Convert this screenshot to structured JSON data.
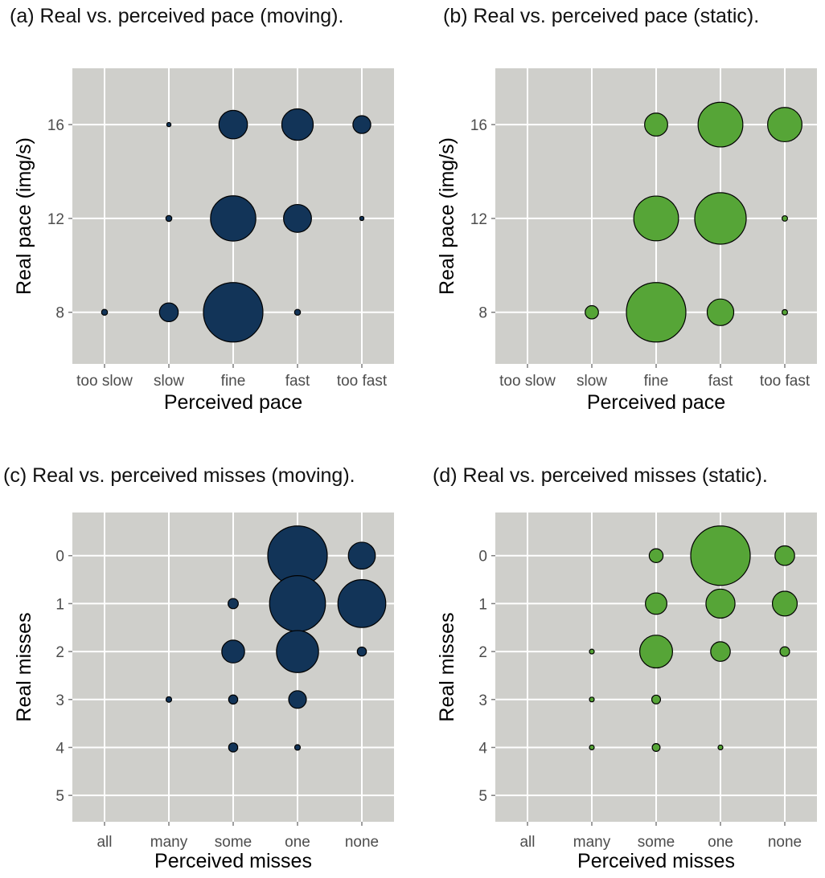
{
  "colors": {
    "moving": "#123458",
    "static": "#56a537",
    "plot_bg": "#cfcfcb",
    "grid": "#ffffff",
    "stroke": "#000000"
  },
  "captions": {
    "a": "(a) Real vs. perceived pace (moving).",
    "b": "(b) Real vs. perceived pace (static).",
    "c": "(c) Real vs. perceived misses (moving).",
    "d": "(d) Real vs. perceived misses (static)."
  },
  "chart_data": [
    {
      "id": "a",
      "type": "scatter",
      "subtype": "bubble",
      "title": "(a) Real vs. perceived pace (moving).",
      "xlabel": "Perceived pace",
      "ylabel": "Real pace (img/s)",
      "x_categories": [
        "too slow",
        "slow",
        "fine",
        "fast",
        "too fast"
      ],
      "y_ticks": [
        "8",
        "12",
        "16"
      ],
      "ylim": [
        5.8,
        18.4
      ],
      "y_reversed": false,
      "color_key": "moving",
      "grid": true,
      "points": [
        {
          "x": "too slow",
          "y": 8,
          "size": 1
        },
        {
          "x": "slow",
          "y": 8,
          "size": 10
        },
        {
          "x": "fine",
          "y": 8,
          "size": 100
        },
        {
          "x": "fast",
          "y": 8,
          "size": 1
        },
        {
          "x": "slow",
          "y": 12,
          "size": 1
        },
        {
          "x": "fine",
          "y": 12,
          "size": 58
        },
        {
          "x": "fast",
          "y": 12,
          "size": 22
        },
        {
          "x": "too fast",
          "y": 12,
          "size": 0.5
        },
        {
          "x": "slow",
          "y": 16,
          "size": 0.5
        },
        {
          "x": "fine",
          "y": 16,
          "size": 23
        },
        {
          "x": "fast",
          "y": 16,
          "size": 28
        },
        {
          "x": "too fast",
          "y": 16,
          "size": 9
        }
      ]
    },
    {
      "id": "b",
      "type": "scatter",
      "subtype": "bubble",
      "title": "(b) Real vs. perceived pace (static).",
      "xlabel": "Perceived pace",
      "ylabel": "Real pace (img/s)",
      "x_categories": [
        "too slow",
        "slow",
        "fine",
        "fast",
        "too fast"
      ],
      "y_ticks": [
        "8",
        "12",
        "16"
      ],
      "ylim": [
        5.8,
        18.4
      ],
      "y_reversed": false,
      "color_key": "static",
      "grid": true,
      "points": [
        {
          "x": "slow",
          "y": 8,
          "size": 3
        },
        {
          "x": "fine",
          "y": 8,
          "size": 60
        },
        {
          "x": "fast",
          "y": 8,
          "size": 12
        },
        {
          "x": "too fast",
          "y": 8,
          "size": 0.5
        },
        {
          "x": "fine",
          "y": 12,
          "size": 34
        },
        {
          "x": "fast",
          "y": 12,
          "size": 45
        },
        {
          "x": "too fast",
          "y": 12,
          "size": 0.5
        },
        {
          "x": "fine",
          "y": 16,
          "size": 9
        },
        {
          "x": "fast",
          "y": 16,
          "size": 34
        },
        {
          "x": "too fast",
          "y": 16,
          "size": 20
        }
      ]
    },
    {
      "id": "c",
      "type": "scatter",
      "subtype": "bubble",
      "title": "(c) Real vs. perceived misses (moving).",
      "xlabel": "Perceived misses",
      "ylabel": "Real misses",
      "x_categories": [
        "all",
        "many",
        "some",
        "one",
        "none"
      ],
      "y_ticks": [
        "0",
        "1",
        "2",
        "3",
        "4",
        "5"
      ],
      "ylim": [
        -0.9,
        5.55
      ],
      "y_reversed": true,
      "color_key": "moving",
      "grid": true,
      "points": [
        {
          "x": "one",
          "y": 0,
          "size": 34
        },
        {
          "x": "none",
          "y": 0,
          "size": 7
        },
        {
          "x": "some",
          "y": 1,
          "size": 1
        },
        {
          "x": "one",
          "y": 1,
          "size": 30
        },
        {
          "x": "none",
          "y": 1,
          "size": 22
        },
        {
          "x": "some",
          "y": 2,
          "size": 5
        },
        {
          "x": "one",
          "y": 2,
          "size": 17
        },
        {
          "x": "none",
          "y": 2,
          "size": 0.8
        },
        {
          "x": "many",
          "y": 3,
          "size": 0.3
        },
        {
          "x": "some",
          "y": 3,
          "size": 0.8
        },
        {
          "x": "one",
          "y": 3,
          "size": 3
        },
        {
          "x": "some",
          "y": 4,
          "size": 0.8
        },
        {
          "x": "one",
          "y": 4,
          "size": 0.3
        }
      ]
    },
    {
      "id": "d",
      "type": "scatter",
      "subtype": "bubble",
      "title": "(d) Real vs. perceived misses (static).",
      "xlabel": "Perceived misses",
      "ylabel": "Real misses",
      "x_categories": [
        "all",
        "many",
        "some",
        "one",
        "none"
      ],
      "y_ticks": [
        "0",
        "1",
        "2",
        "3",
        "4",
        "5"
      ],
      "ylim": [
        -0.9,
        5.55
      ],
      "y_reversed": true,
      "color_key": "static",
      "grid": true,
      "points": [
        {
          "x": "some",
          "y": 0,
          "size": 2.5
        },
        {
          "x": "one",
          "y": 0,
          "size": 46
        },
        {
          "x": "none",
          "y": 0,
          "size": 5
        },
        {
          "x": "some",
          "y": 1,
          "size": 6
        },
        {
          "x": "one",
          "y": 1,
          "size": 11
        },
        {
          "x": "none",
          "y": 1,
          "size": 8
        },
        {
          "x": "many",
          "y": 2,
          "size": 0.3
        },
        {
          "x": "some",
          "y": 2,
          "size": 14
        },
        {
          "x": "one",
          "y": 2,
          "size": 5
        },
        {
          "x": "none",
          "y": 2,
          "size": 1.2
        },
        {
          "x": "many",
          "y": 3,
          "size": 0.3
        },
        {
          "x": "some",
          "y": 3,
          "size": 1
        },
        {
          "x": "many",
          "y": 4,
          "size": 0.3
        },
        {
          "x": "some",
          "y": 4,
          "size": 0.8
        },
        {
          "x": "one",
          "y": 4,
          "size": 0.3
        }
      ]
    }
  ]
}
